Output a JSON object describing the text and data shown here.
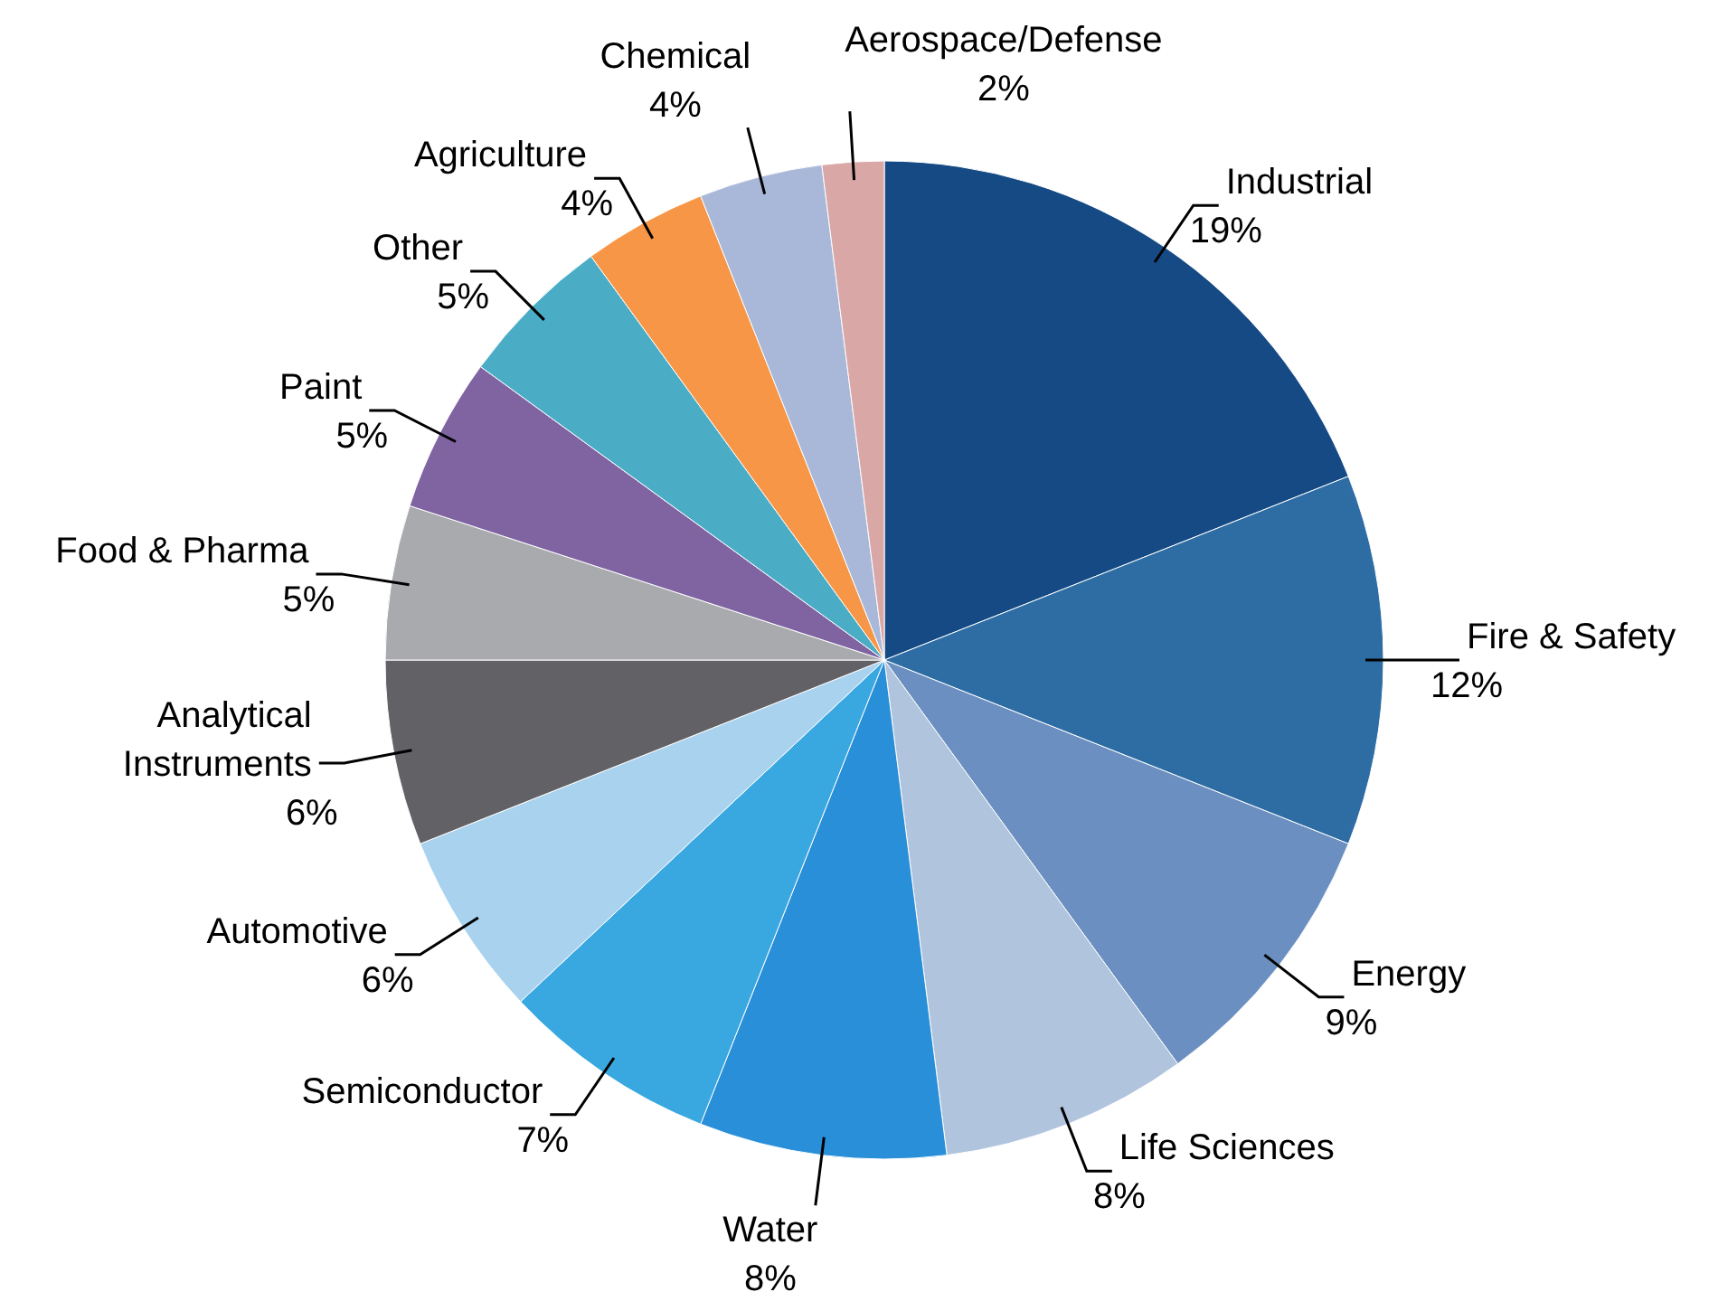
{
  "chart_data": {
    "type": "pie",
    "categories": [
      "Industrial",
      "Fire & Safety",
      "Energy",
      "Life Sciences",
      "Water",
      "Semiconductor",
      "Automotive",
      "Analytical Instruments",
      "Food & Pharma",
      "Paint",
      "Other",
      "Agriculture",
      "Chemical",
      "Aerospace/Defense"
    ],
    "values": [
      19,
      12,
      9,
      8,
      8,
      7,
      6,
      6,
      5,
      5,
      5,
      4,
      4,
      2
    ],
    "value_labels": [
      "19%",
      "12%",
      "9%",
      "8%",
      "8%",
      "7%",
      "6%",
      "6%",
      "5%",
      "5%",
      "5%",
      "4%",
      "4%",
      "2%"
    ],
    "colors": [
      "#154a84",
      "#2e6da4",
      "#6a8fc0",
      "#b0c4de",
      "#2a8fd9",
      "#3aa8e0",
      "#a8d2ee",
      "#626166",
      "#a9aaad",
      "#8064a2",
      "#4bacc6",
      "#f79646",
      "#a9b8d8",
      "#d9a7a6"
    ]
  }
}
